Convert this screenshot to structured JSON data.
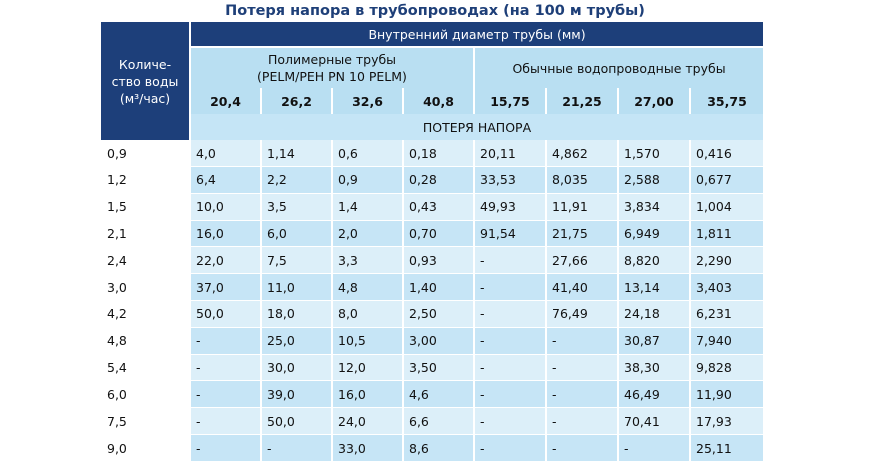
{
  "title": "Потеря напора в трубопроводах (на 100 м трубы)",
  "header": {
    "quantity_line1": "Количе-",
    "quantity_line2": "ство воды",
    "quantity_line3": "(м³/час)",
    "diameter": "Внутренний диаметр трубы (мм)",
    "poly_line1": "Полимерные трубы",
    "poly_line2": "(PELM/PEH PN 10 PELM)",
    "regular": "Обычные водопроводные трубы",
    "sizes": [
      "20,4",
      "26,2",
      "32,6",
      "40,8",
      "15,75",
      "21,25",
      "27,00",
      "35,75"
    ],
    "head_loss": "ПОТЕРЯ НАПОРА"
  },
  "rows": [
    {
      "q": "0,9",
      "v": [
        "4,0",
        "1,14",
        "0,6",
        "0,18",
        "20,11",
        "4,862",
        "1,570",
        "0,416"
      ]
    },
    {
      "q": "1,2",
      "v": [
        "6,4",
        "2,2",
        "0,9",
        "0,28",
        "33,53",
        "8,035",
        "2,588",
        "0,677"
      ]
    },
    {
      "q": "1,5",
      "v": [
        "10,0",
        "3,5",
        "1,4",
        "0,43",
        "49,93",
        "11,91",
        "3,834",
        "1,004"
      ]
    },
    {
      "q": "2,1",
      "v": [
        "16,0",
        "6,0",
        "2,0",
        "0,70",
        "91,54",
        "21,75",
        "6,949",
        "1,811"
      ]
    },
    {
      "q": "2,4",
      "v": [
        "22,0",
        "7,5",
        "3,3",
        "0,93",
        "-",
        "27,66",
        "8,820",
        "2,290"
      ]
    },
    {
      "q": "3,0",
      "v": [
        "37,0",
        "11,0",
        "4,8",
        "1,40",
        "-",
        "41,40",
        "13,14",
        "3,403"
      ]
    },
    {
      "q": "4,2",
      "v": [
        "50,0",
        "18,0",
        "8,0",
        "2,50",
        "-",
        "76,49",
        "24,18",
        "6,231"
      ]
    },
    {
      "q": "4,8",
      "v": [
        "-",
        "25,0",
        "10,5",
        "3,00",
        "-",
        "-",
        "30,87",
        "7,940"
      ]
    },
    {
      "q": "5,4",
      "v": [
        "-",
        "30,0",
        "12,0",
        "3,50",
        "-",
        "-",
        "38,30",
        "9,828"
      ]
    },
    {
      "q": "6,0",
      "v": [
        "-",
        "39,0",
        "16,0",
        "4,6",
        "-",
        "-",
        "46,49",
        "11,90"
      ]
    },
    {
      "q": "7,5",
      "v": [
        "-",
        "50,0",
        "24,0",
        "6,6",
        "-",
        "-",
        "70,41",
        "17,93"
      ]
    },
    {
      "q": "9,0",
      "v": [
        "-",
        "-",
        "33,0",
        "8,6",
        "-",
        "-",
        "-",
        "25,11"
      ]
    }
  ],
  "colors": {
    "navy": "#1d3f7a",
    "header_blue": "#b9dff2",
    "row_light": "#dceff9",
    "row_mid": "#c6e5f6"
  }
}
